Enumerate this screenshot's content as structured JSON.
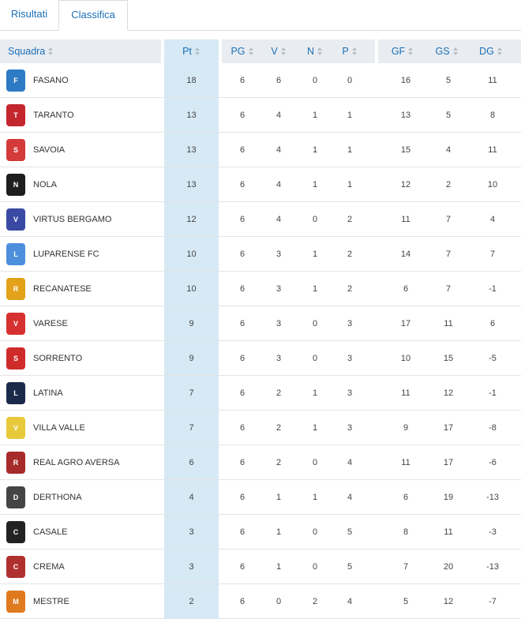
{
  "tabs": [
    {
      "label": "Risultati"
    },
    {
      "label": "Classifica"
    }
  ],
  "columns": {
    "team": "Squadra",
    "pt": "Pt",
    "pg": "PG",
    "v": "V",
    "n": "N",
    "p": "P",
    "gf": "GF",
    "gs": "GS",
    "dg": "DG"
  },
  "rows": [
    {
      "team": "FASANO",
      "pt": "18",
      "pg": "6",
      "v": "6",
      "n": "0",
      "p": "0",
      "gf": "16",
      "gs": "5",
      "dg": "11",
      "logo_color": "#2d7bc4",
      "logo": "F"
    },
    {
      "team": "TARANTO",
      "pt": "13",
      "pg": "6",
      "v": "4",
      "n": "1",
      "p": "1",
      "gf": "13",
      "gs": "5",
      "dg": "8",
      "logo_color": "#c4262e",
      "logo": "T"
    },
    {
      "team": "SAVOIA",
      "pt": "13",
      "pg": "6",
      "v": "4",
      "n": "1",
      "p": "1",
      "gf": "15",
      "gs": "4",
      "dg": "11",
      "logo_color": "#d43a3a",
      "logo": "S"
    },
    {
      "team": "NOLA",
      "pt": "13",
      "pg": "6",
      "v": "4",
      "n": "1",
      "p": "1",
      "gf": "12",
      "gs": "2",
      "dg": "10",
      "logo_color": "#1e1e1e",
      "logo": "N"
    },
    {
      "team": "VIRTUS BERGAMO",
      "pt": "12",
      "pg": "6",
      "v": "4",
      "n": "0",
      "p": "2",
      "gf": "11",
      "gs": "7",
      "dg": "4",
      "logo_color": "#3949a4",
      "logo": "V"
    },
    {
      "team": "LUPARENSE FC",
      "pt": "10",
      "pg": "6",
      "v": "3",
      "n": "1",
      "p": "2",
      "gf": "14",
      "gs": "7",
      "dg": "7",
      "logo_color": "#4d8fdd",
      "logo": "L"
    },
    {
      "team": "RECANATESE",
      "pt": "10",
      "pg": "6",
      "v": "3",
      "n": "1",
      "p": "2",
      "gf": "6",
      "gs": "7",
      "dg": "-1",
      "logo_color": "#e3a21a",
      "logo": "R"
    },
    {
      "team": "VARESE",
      "pt": "9",
      "pg": "6",
      "v": "3",
      "n": "0",
      "p": "3",
      "gf": "17",
      "gs": "11",
      "dg": "6",
      "logo_color": "#d63030",
      "logo": "V"
    },
    {
      "team": "SORRENTO",
      "pt": "9",
      "pg": "6",
      "v": "3",
      "n": "0",
      "p": "3",
      "gf": "10",
      "gs": "15",
      "dg": "-5",
      "logo_color": "#cf2b2b",
      "logo": "S"
    },
    {
      "team": "LATINA",
      "pt": "7",
      "pg": "6",
      "v": "2",
      "n": "1",
      "p": "3",
      "gf": "11",
      "gs": "12",
      "dg": "-1",
      "logo_color": "#1c2a4a",
      "logo": "L"
    },
    {
      "team": "VILLA VALLE",
      "pt": "7",
      "pg": "6",
      "v": "2",
      "n": "1",
      "p": "3",
      "gf": "9",
      "gs": "17",
      "dg": "-8",
      "logo_color": "#e8c93a",
      "logo": "V"
    },
    {
      "team": "REAL AGRO AVERSA",
      "pt": "6",
      "pg": "6",
      "v": "2",
      "n": "0",
      "p": "4",
      "gf": "11",
      "gs": "17",
      "dg": "-6",
      "logo_color": "#a72b2b",
      "logo": "R"
    },
    {
      "team": "DERTHONA",
      "pt": "4",
      "pg": "6",
      "v": "1",
      "n": "1",
      "p": "4",
      "gf": "6",
      "gs": "19",
      "dg": "-13",
      "logo_color": "#444444",
      "logo": "D"
    },
    {
      "team": "CASALE",
      "pt": "3",
      "pg": "6",
      "v": "1",
      "n": "0",
      "p": "5",
      "gf": "8",
      "gs": "11",
      "dg": "-3",
      "logo_color": "#222222",
      "logo": "C"
    },
    {
      "team": "CREMA",
      "pt": "3",
      "pg": "6",
      "v": "1",
      "n": "0",
      "p": "5",
      "gf": "7",
      "gs": "20",
      "dg": "-13",
      "logo_color": "#b03030",
      "logo": "C"
    },
    {
      "team": "MESTRE",
      "pt": "2",
      "pg": "6",
      "v": "0",
      "n": "2",
      "p": "4",
      "gf": "5",
      "gs": "12",
      "dg": "-7",
      "logo_color": "#e07a1f",
      "logo": "M"
    }
  ]
}
